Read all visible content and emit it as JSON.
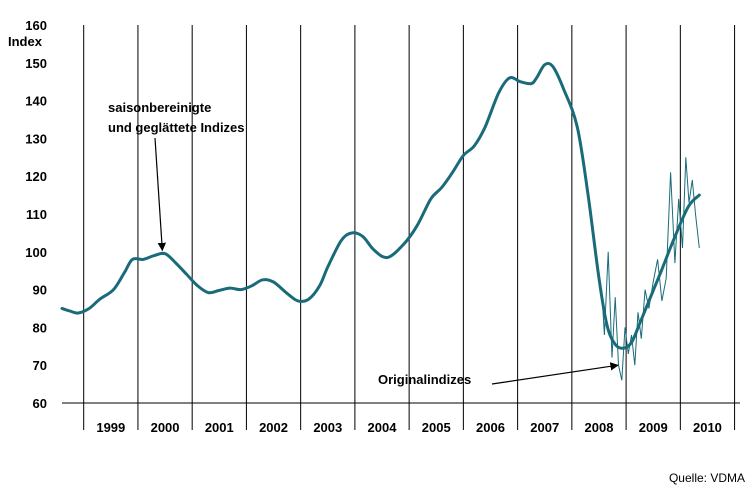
{
  "chart_data": {
    "type": "line",
    "ylabel": "Index",
    "ylim": [
      60,
      160
    ],
    "yticks": [
      60,
      70,
      80,
      90,
      100,
      110,
      120,
      130,
      140,
      150,
      160
    ],
    "xlim": [
      1998.6,
      2011.1
    ],
    "year_labels": [
      "1999",
      "2000",
      "2001",
      "2002",
      "2003",
      "2004",
      "2005",
      "2006",
      "2007",
      "2008",
      "2009",
      "2010"
    ],
    "grid": "vertical lines at year boundaries",
    "series": [
      {
        "name": "saisonbereinigte und geglättete Indizes",
        "color": "#1a6b7a",
        "x": [
          1998.6,
          1998.75,
          1998.9,
          1999.1,
          1999.3,
          1999.55,
          1999.75,
          1999.9,
          2000.1,
          2000.3,
          2000.5,
          2000.7,
          2000.9,
          2001.1,
          2001.3,
          2001.5,
          2001.7,
          2001.9,
          2002.1,
          2002.3,
          2002.5,
          2002.75,
          2002.95,
          2003.15,
          2003.35,
          2003.5,
          2003.75,
          2003.95,
          2004.15,
          2004.35,
          2004.6,
          2004.9,
          2005.15,
          2005.4,
          2005.6,
          2005.8,
          2006.0,
          2006.2,
          2006.4,
          2006.65,
          2006.85,
          2007.05,
          2007.25,
          2007.35,
          2007.5,
          2007.65,
          2007.85,
          2008.1,
          2008.3,
          2008.5,
          2008.65,
          2008.8,
          2008.95,
          2009.1,
          2009.25,
          2009.45,
          2009.65,
          2009.9,
          2010.15,
          2010.35
        ],
        "y": [
          85,
          84.3,
          83.8,
          85,
          87.5,
          90,
          94.5,
          98,
          98,
          99,
          99.5,
          97,
          94,
          91,
          89.2,
          89.8,
          90.4,
          90,
          91,
          92.6,
          92,
          89,
          87,
          87.5,
          91,
          96,
          103,
          105,
          104,
          100.5,
          98.5,
          102,
          107,
          114,
          117,
          121,
          125.5,
          128,
          133,
          142,
          146,
          145,
          144.5,
          146,
          149.5,
          149,
          143,
          133,
          115,
          93,
          80.5,
          75.5,
          74.5,
          76,
          81,
          88,
          95,
          104,
          112,
          115
        ]
      },
      {
        "name": "Originalindizes",
        "color": "#1a6b7a",
        "x": [
          2008.55,
          2008.6,
          2008.67,
          2008.74,
          2008.8,
          2008.86,
          2008.92,
          2008.98,
          2009.04,
          2009.1,
          2009.16,
          2009.22,
          2009.28,
          2009.35,
          2009.42,
          2009.5,
          2009.58,
          2009.66,
          2009.74,
          2009.82,
          2009.9,
          2009.97,
          2010.04,
          2010.1,
          2010.16,
          2010.22,
          2010.28,
          2010.35
        ],
        "y": [
          90,
          78,
          100,
          72,
          88,
          70,
          66,
          80,
          73,
          78,
          70,
          84,
          77,
          90,
          85,
          92,
          98,
          87,
          93,
          121,
          97,
          114,
          101,
          125,
          113,
          119,
          110,
          101
        ]
      }
    ],
    "annotations": [
      {
        "line1": "saisonbereinigte",
        "line2": "und geglättete Indizes",
        "target_x": 2000.45,
        "target_y": 99.3
      },
      {
        "text": "Originalindizes",
        "target_x": 2008.85,
        "target_y": 70
      }
    ]
  },
  "source": "Quelle: VDMA"
}
